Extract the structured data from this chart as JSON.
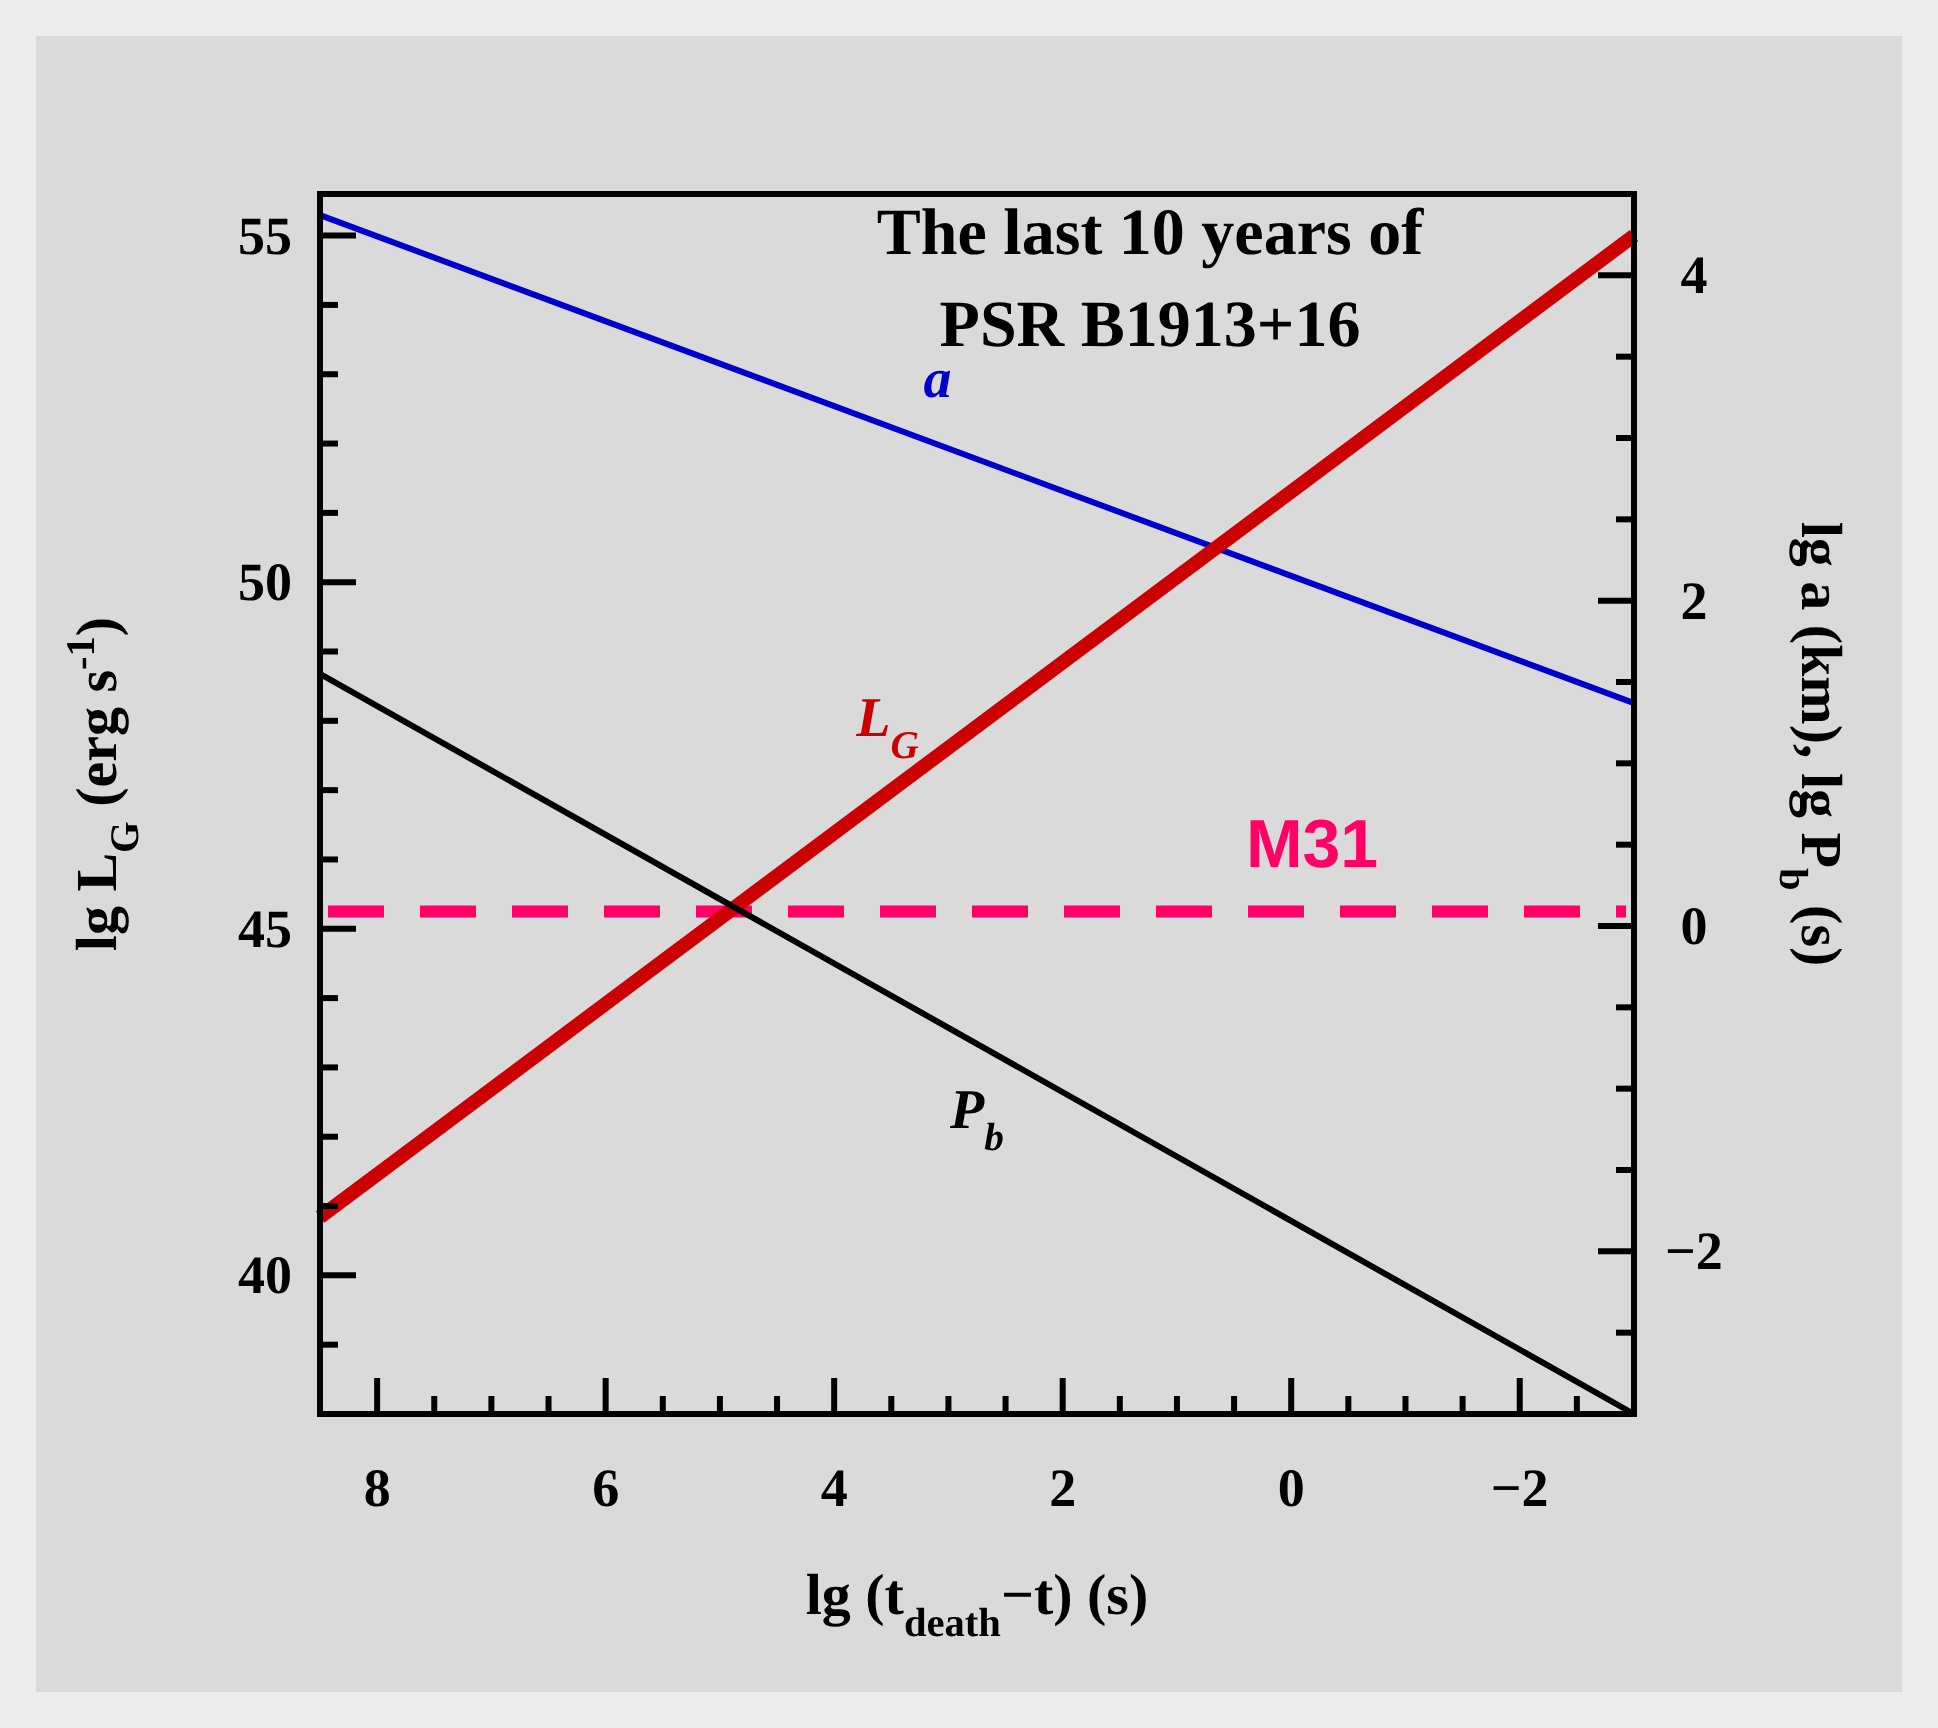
{
  "chart_data": {
    "type": "line",
    "title": "The last 10 years of\nPSR B1913+16",
    "xlabel": "lg (t$_{death}$−t) (s)",
    "ylabel": "lg L$_{G}$ (erg s$^{-1}$)",
    "y2label": "lg a (km),  lg P$_{b}$ (s)",
    "x": [
      8.5,
      -3
    ],
    "xlim": [
      8.5,
      -3
    ],
    "xticks": [
      {
        "value": 8.5,
        "label": null
      },
      8,
      {
        "value": 7.5,
        "label": null
      },
      {
        "value": 7,
        "label": null
      },
      {
        "value": 6.5,
        "label": null
      },
      6,
      {
        "value": 5.5,
        "label": null
      },
      {
        "value": 5,
        "label": null
      },
      {
        "value": 4.5,
        "label": null
      },
      4,
      {
        "value": 3.5,
        "label": null
      },
      {
        "value": 3,
        "label": null
      },
      {
        "value": 2.5,
        "label": null
      },
      2,
      {
        "value": 1.5,
        "label": null
      },
      {
        "value": 1,
        "label": null
      },
      {
        "value": 0.5,
        "label": null
      },
      0,
      {
        "value": -0.5,
        "label": null
      },
      {
        "value": -1,
        "label": null
      },
      {
        "value": -1.5,
        "label": null
      },
      {
        "value": -2,
        "label": "−2"
      },
      {
        "value": -2.5,
        "label": null
      }
    ],
    "ylim": [
      38,
      55.6
    ],
    "yticks": [
      {
        "value": 39,
        "label": null
      },
      40,
      {
        "value": 41,
        "label": null
      },
      {
        "value": 42,
        "label": null
      },
      {
        "value": 43,
        "label": null
      },
      {
        "value": 44,
        "label": null
      },
      45,
      {
        "value": 46,
        "label": null
      },
      {
        "value": 47,
        "label": null
      },
      {
        "value": 48,
        "label": null
      },
      {
        "value": 49,
        "label": null
      },
      50,
      {
        "value": 51,
        "label": null
      },
      {
        "value": 52,
        "label": null
      },
      {
        "value": 53,
        "label": null
      },
      {
        "value": 54,
        "label": null
      },
      55
    ],
    "y2lim": [
      -3,
      4.5
    ],
    "y2ticks": [
      {
        "value": -2.5,
        "label": null
      },
      {
        "value": -2,
        "label": "−2"
      },
      {
        "value": -1.5,
        "label": null
      },
      {
        "value": -1,
        "label": null
      },
      {
        "value": -0.5,
        "label": null
      },
      0,
      {
        "value": 0.5,
        "label": null
      },
      {
        "value": 1,
        "label": null
      },
      {
        "value": 1.5,
        "label": null
      },
      2,
      {
        "value": 2.5,
        "label": null
      },
      {
        "value": 3,
        "label": null
      },
      {
        "value": 3.5,
        "label": null
      },
      4
    ],
    "marker": "none",
    "line_style": "solid",
    "series": [
      {
        "name": "a",
        "color": "#0000cc",
        "axis": "y2",
        "values": [
          4.37,
          1.37
        ]
      },
      {
        "name": "L$_{G}$",
        "color": "#cc0000",
        "values": [
          40.84,
          55.0
        ]
      },
      {
        "name": "P$_{b}$",
        "color": "#000000",
        "axis": "y2",
        "values": [
          1.55,
          -3.0
        ]
      }
    ],
    "ref_lines": [
      {
        "axis": "y",
        "value": 45.25,
        "label": "M31",
        "color": "#ff0066",
        "line_style": "dashed"
      }
    ]
  }
}
